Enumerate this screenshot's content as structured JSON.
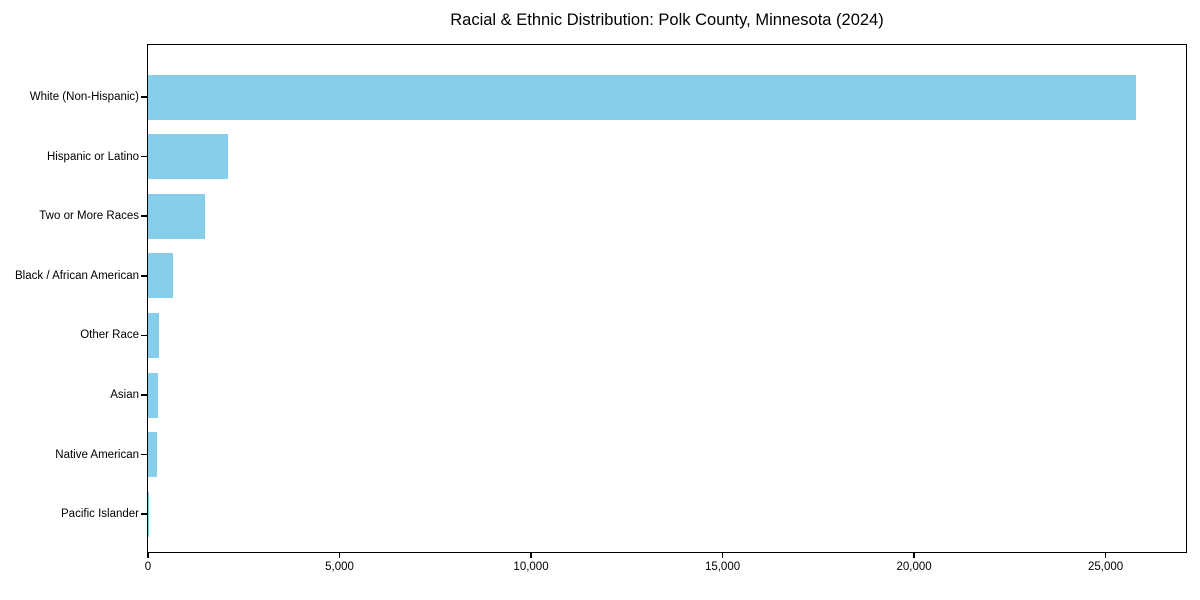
{
  "title": "Racial & Ethnic Distribution: Polk County, Minnesota (2024)",
  "chart_data": {
    "type": "bar",
    "orientation": "horizontal",
    "title": "Racial & Ethnic Distribution: Polk County, Minnesota (2024)",
    "categories": [
      "White (Non-Hispanic)",
      "Hispanic or Latino",
      "Two or More Races",
      "Black / African American",
      "Other Race",
      "Asian",
      "Native American",
      "Pacific Islander"
    ],
    "values": [
      25800,
      2100,
      1500,
      660,
      290,
      270,
      245,
      10
    ],
    "xlabel": "",
    "ylabel": "",
    "xlim": [
      0,
      27100
    ],
    "x_ticks": [
      0,
      5000,
      10000,
      15000,
      20000,
      25000
    ],
    "x_tick_labels": [
      "0",
      "5,000",
      "10,000",
      "15,000",
      "20,000",
      "25,000"
    ],
    "grid": false,
    "legend": null,
    "bar_color": "#87CEEB"
  },
  "colors": {
    "bar": "#87CEEB",
    "axis": "#000000",
    "text": "#000000",
    "background": "#FFFFFF"
  }
}
